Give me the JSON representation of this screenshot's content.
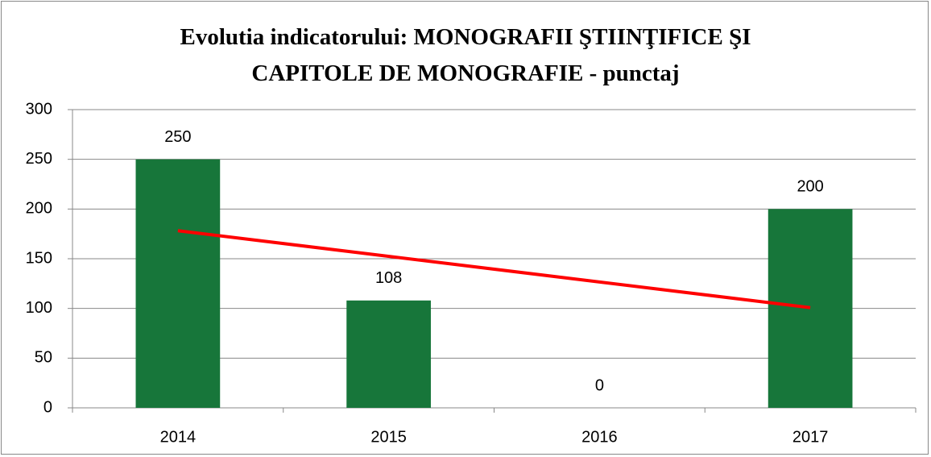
{
  "chart_data": {
    "type": "bar",
    "title": "Evolutia indicatorului: MONOGRAFII ŞTIINŢIFICE ŞI CAPITOLE DE MONOGRAFIE - punctaj",
    "categories": [
      "2014",
      "2015",
      "2016",
      "2017"
    ],
    "values": [
      250,
      108,
      0,
      200
    ],
    "color": "#17763a",
    "ylim": [
      0,
      300
    ],
    "yticks": [
      0,
      50,
      100,
      150,
      200,
      250,
      300
    ],
    "grid": true,
    "trendline": "linear",
    "trendline_color": "#ff0000"
  }
}
